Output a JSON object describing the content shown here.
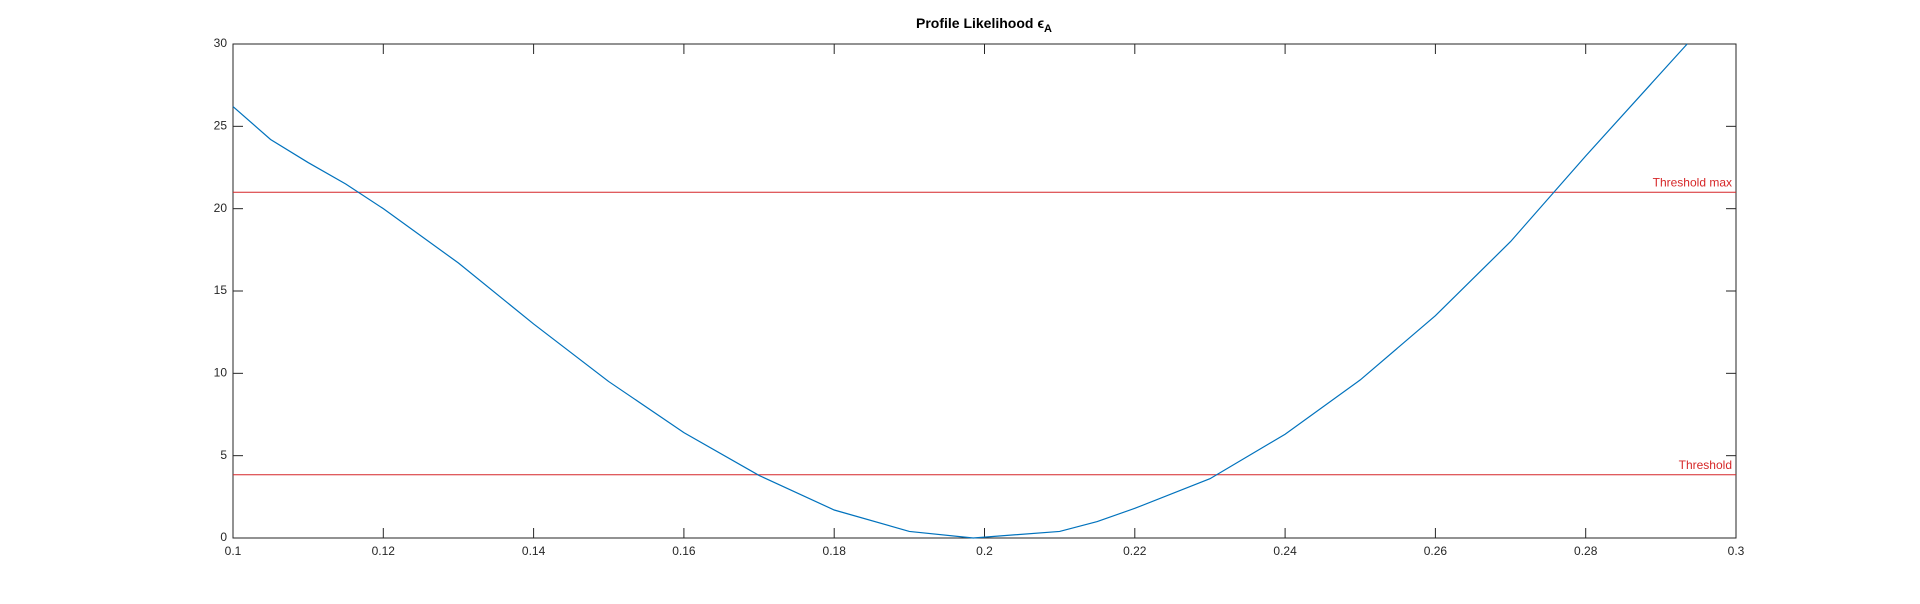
{
  "chart_data": {
    "type": "line",
    "title": "Profile Likelihood ϵ",
    "title_subscript": "A",
    "x": [
      0.1,
      0.105,
      0.11,
      0.115,
      0.12,
      0.13,
      0.14,
      0.15,
      0.16,
      0.17,
      0.18,
      0.19,
      0.1985,
      0.21,
      0.215,
      0.22,
      0.23,
      0.24,
      0.25,
      0.26,
      0.27,
      0.28,
      0.2935
    ],
    "series": [
      {
        "name": "Profile likelihood",
        "color": "#0072bd",
        "values": [
          26.2,
          24.2,
          22.8,
          21.5,
          20.0,
          16.7,
          13.0,
          9.5,
          6.4,
          3.8,
          1.7,
          0.4,
          0,
          0.4,
          1.0,
          1.8,
          3.6,
          6.3,
          9.6,
          13.5,
          18.0,
          23.2,
          30
        ]
      }
    ],
    "hlines": [
      {
        "value": 21,
        "label": "Threshold max",
        "color": "#d62728"
      },
      {
        "value": 3.84,
        "label": "Threshold",
        "color": "#d62728"
      }
    ],
    "xlim": [
      0.1,
      0.3
    ],
    "xticks": [
      0.1,
      0.12,
      0.14,
      0.16,
      0.18,
      0.2,
      0.22,
      0.24,
      0.26,
      0.28,
      0.3
    ],
    "ylim": [
      0,
      30
    ],
    "yticks": [
      0,
      5,
      10,
      15,
      20,
      25,
      30
    ],
    "grid": false
  }
}
